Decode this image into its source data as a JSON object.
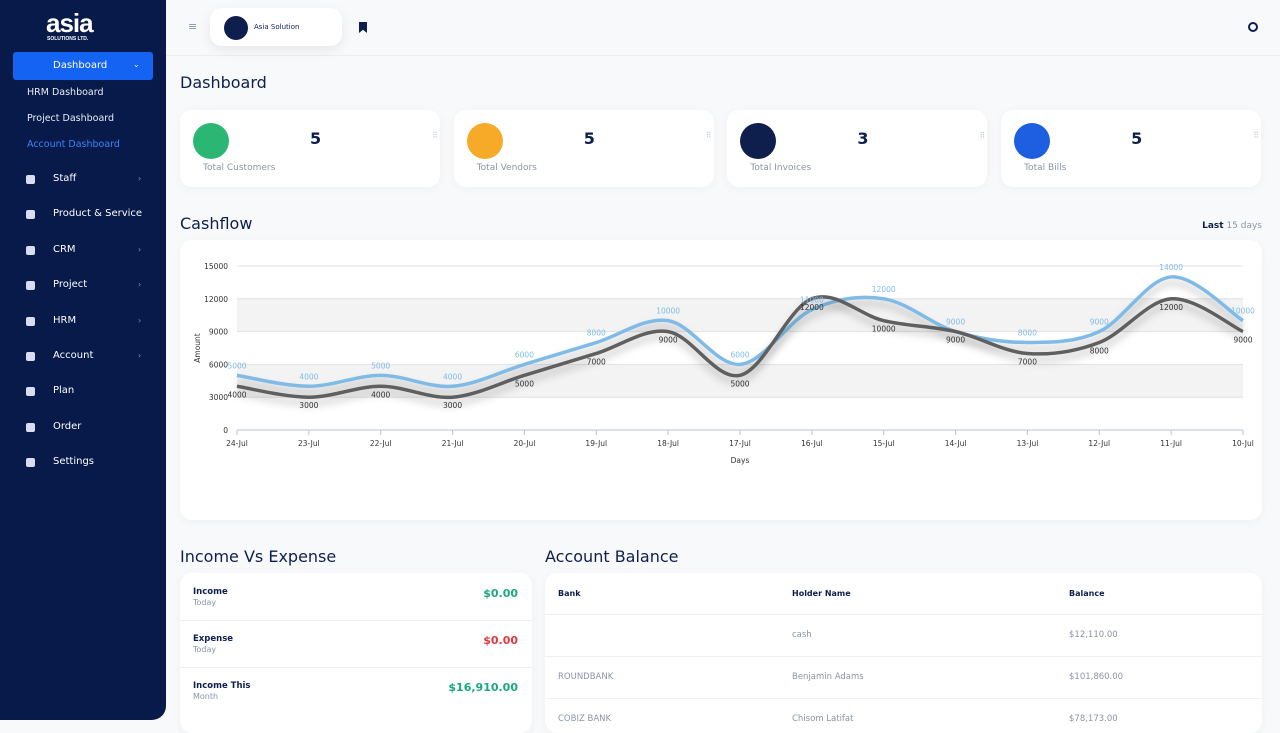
{
  "sidebar": {
    "logo": "asia",
    "logo_sub": "SOLUTIONS LTD.",
    "active": "Dashboard",
    "submenu": [
      "HRM Dashboard",
      "Project Dashboard",
      "Account Dashboard"
    ],
    "menu": [
      "Staff",
      "Product & Service",
      "CRM",
      "Project",
      "HRM",
      "Account",
      "Plan",
      "Order",
      "Settings"
    ]
  },
  "topbar": {
    "company": "Asia Solution"
  },
  "page_title": "Dashboard",
  "cards": [
    {
      "value": 5,
      "label": "Total Customers",
      "color": "#2bb673"
    },
    {
      "value": 5,
      "label": "Total Vendors",
      "color": "#f7a928"
    },
    {
      "value": 3,
      "label": "Total Invoices",
      "color": "#0e1f4d"
    },
    {
      "value": 5,
      "label": "Total Bills",
      "color": "#1d5fe0"
    }
  ],
  "cashflow": {
    "title": "Cashflow",
    "range_strong": "Last",
    "range": "15 days"
  },
  "chart_data": {
    "type": "line",
    "categories": [
      "24-Jul",
      "23-Jul",
      "22-Jul",
      "21-Jul",
      "20-Jul",
      "19-Jul",
      "18-Jul",
      "17-Jul",
      "16-Jul",
      "15-Jul",
      "14-Jul",
      "13-Jul",
      "12-Jul",
      "11-Jul",
      "10-Jul"
    ],
    "series": [
      {
        "color": "#7fbbe6",
        "values": [
          5000,
          4000,
          5000,
          4000,
          6000,
          8000,
          10000,
          6000,
          11000,
          12000,
          9000,
          8000,
          9000,
          14000,
          10000
        ]
      },
      {
        "color": "#5f5f5f",
        "values": [
          4000,
          3000,
          4000,
          3000,
          5000,
          7000,
          9000,
          5000,
          12000,
          10000,
          9000,
          7000,
          8000,
          12000,
          9000
        ]
      }
    ],
    "ylim": [
      0,
      15000
    ],
    "yticks": [
      0,
      3000,
      6000,
      9000,
      12000,
      15000
    ],
    "x_label": "Days",
    "y_label": "Amount",
    "grid": true
  },
  "income_expense": {
    "title": "Income Vs Expense",
    "rows": [
      {
        "label": "Income",
        "sub": "Today",
        "value": "$0.00",
        "color": "#1aa882"
      },
      {
        "label": "Expense",
        "sub": "Today",
        "value": "$0.00",
        "color": "#e0393e"
      },
      {
        "label": "Income This",
        "sub": "Month",
        "value": "$16,910.00",
        "color": "#1aa882"
      }
    ]
  },
  "account_balance": {
    "title": "Account Balance",
    "headers": [
      "Bank",
      "Holder Name",
      "Balance"
    ],
    "rows": [
      [
        null,
        "cash",
        "$12,110.00"
      ],
      [
        "ROUNDBANK",
        "Benjamin Adams",
        "$101,860.00"
      ],
      [
        "COBIZ BANK",
        "Chisom Latifat",
        "$78,173.00"
      ]
    ]
  }
}
